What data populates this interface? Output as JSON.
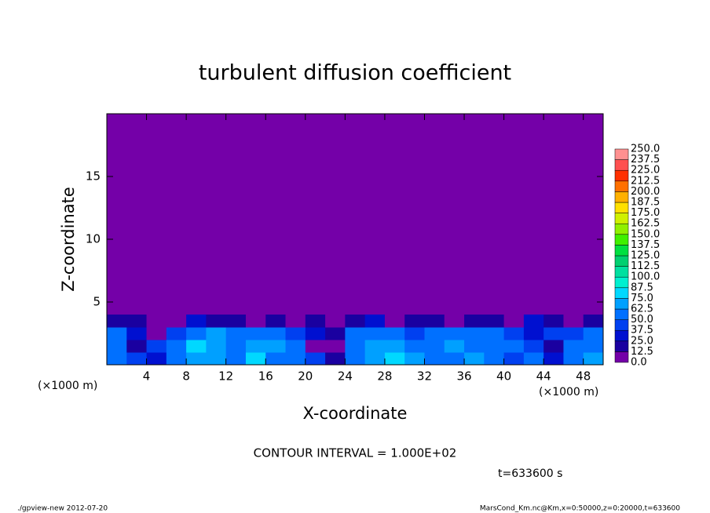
{
  "chart_data": {
    "type": "contour",
    "title": "turbulent diffusion coefficient",
    "x_label": "X-coordinate",
    "y_label": "Z-coordinate",
    "x_unit_label": "(×1000 m)",
    "y_unit_label": "(×1000 m)",
    "contour_note": "CONTOUR INTERVAL = 1.000E+02",
    "time_label": "t=633600 s",
    "footer_left": "./gpview-new  2012-07-20",
    "footer_right": "MarsCond_Km.nc@Km,x=0:50000,z=0:20000,t=633600",
    "xlim": [
      0,
      50
    ],
    "ylim": [
      0,
      20
    ],
    "xticks": [
      4,
      8,
      12,
      16,
      20,
      24,
      28,
      32,
      36,
      40,
      44,
      48
    ],
    "yticks": [
      5,
      10,
      15
    ],
    "x_edges": [
      0,
      2,
      4,
      6,
      8,
      10,
      12,
      14,
      16,
      18,
      20,
      22,
      24,
      26,
      28,
      30,
      32,
      34,
      36,
      38,
      40,
      42,
      44,
      46,
      48,
      50
    ],
    "z_edges": [
      0,
      1,
      2,
      3,
      4
    ],
    "values": [
      [
        60,
        45,
        30,
        55,
        70,
        65,
        50,
        75,
        60,
        55,
        40,
        20,
        60,
        70,
        80,
        65,
        50,
        60,
        70,
        55,
        45,
        60,
        30,
        55,
        65
      ],
      [
        55,
        20,
        40,
        60,
        75,
        70,
        55,
        65,
        70,
        50,
        10,
        5,
        50,
        65,
        70,
        55,
        60,
        65,
        50,
        60,
        55,
        40,
        15,
        50,
        60
      ],
      [
        50,
        30,
        10,
        45,
        55,
        65,
        60,
        50,
        55,
        45,
        30,
        20,
        55,
        60,
        50,
        45,
        55,
        50,
        60,
        55,
        40,
        30,
        45,
        40,
        55
      ],
      [
        20,
        15,
        5,
        10,
        25,
        15,
        20,
        10,
        15,
        10,
        20,
        5,
        15,
        25,
        10,
        20,
        15,
        10,
        20,
        15,
        10,
        25,
        15,
        10,
        20
      ]
    ],
    "levels": [
      {
        "value": 0,
        "label": "0.0"
      },
      {
        "value": 12.5,
        "label": "12.5"
      },
      {
        "value": 25,
        "label": "25.0"
      },
      {
        "value": 37.5,
        "label": "37.5"
      },
      {
        "value": 50,
        "label": "50.0"
      },
      {
        "value": 62.5,
        "label": "62.5"
      },
      {
        "value": 75,
        "label": "75.0"
      },
      {
        "value": 87.5,
        "label": "87.5"
      },
      {
        "value": 100,
        "label": "100.0"
      },
      {
        "value": 112.5,
        "label": "112.5"
      },
      {
        "value": 125,
        "label": "125.0"
      },
      {
        "value": 137.5,
        "label": "137.5"
      },
      {
        "value": 150,
        "label": "150.0"
      },
      {
        "value": 162.5,
        "label": "162.5"
      },
      {
        "value": 175,
        "label": "175.0"
      },
      {
        "value": 187.5,
        "label": "187.5"
      },
      {
        "value": 200,
        "label": "200.0"
      },
      {
        "value": 212.5,
        "label": "212.5"
      },
      {
        "value": 225,
        "label": "225.0"
      },
      {
        "value": 237.5,
        "label": "237.5"
      },
      {
        "value": 250,
        "label": "250.0"
      }
    ],
    "colors": [
      "#7400a8",
      "#1a00a0",
      "#0010d0",
      "#0040f0",
      "#0070ff",
      "#00a0ff",
      "#00d8ff",
      "#00f0d0",
      "#00e0a0",
      "#00d070",
      "#00e040",
      "#40f000",
      "#90f000",
      "#d0f000",
      "#ffe000",
      "#ffb000",
      "#ff7000",
      "#ff3000",
      "#ff5050",
      "#ff9090"
    ]
  }
}
